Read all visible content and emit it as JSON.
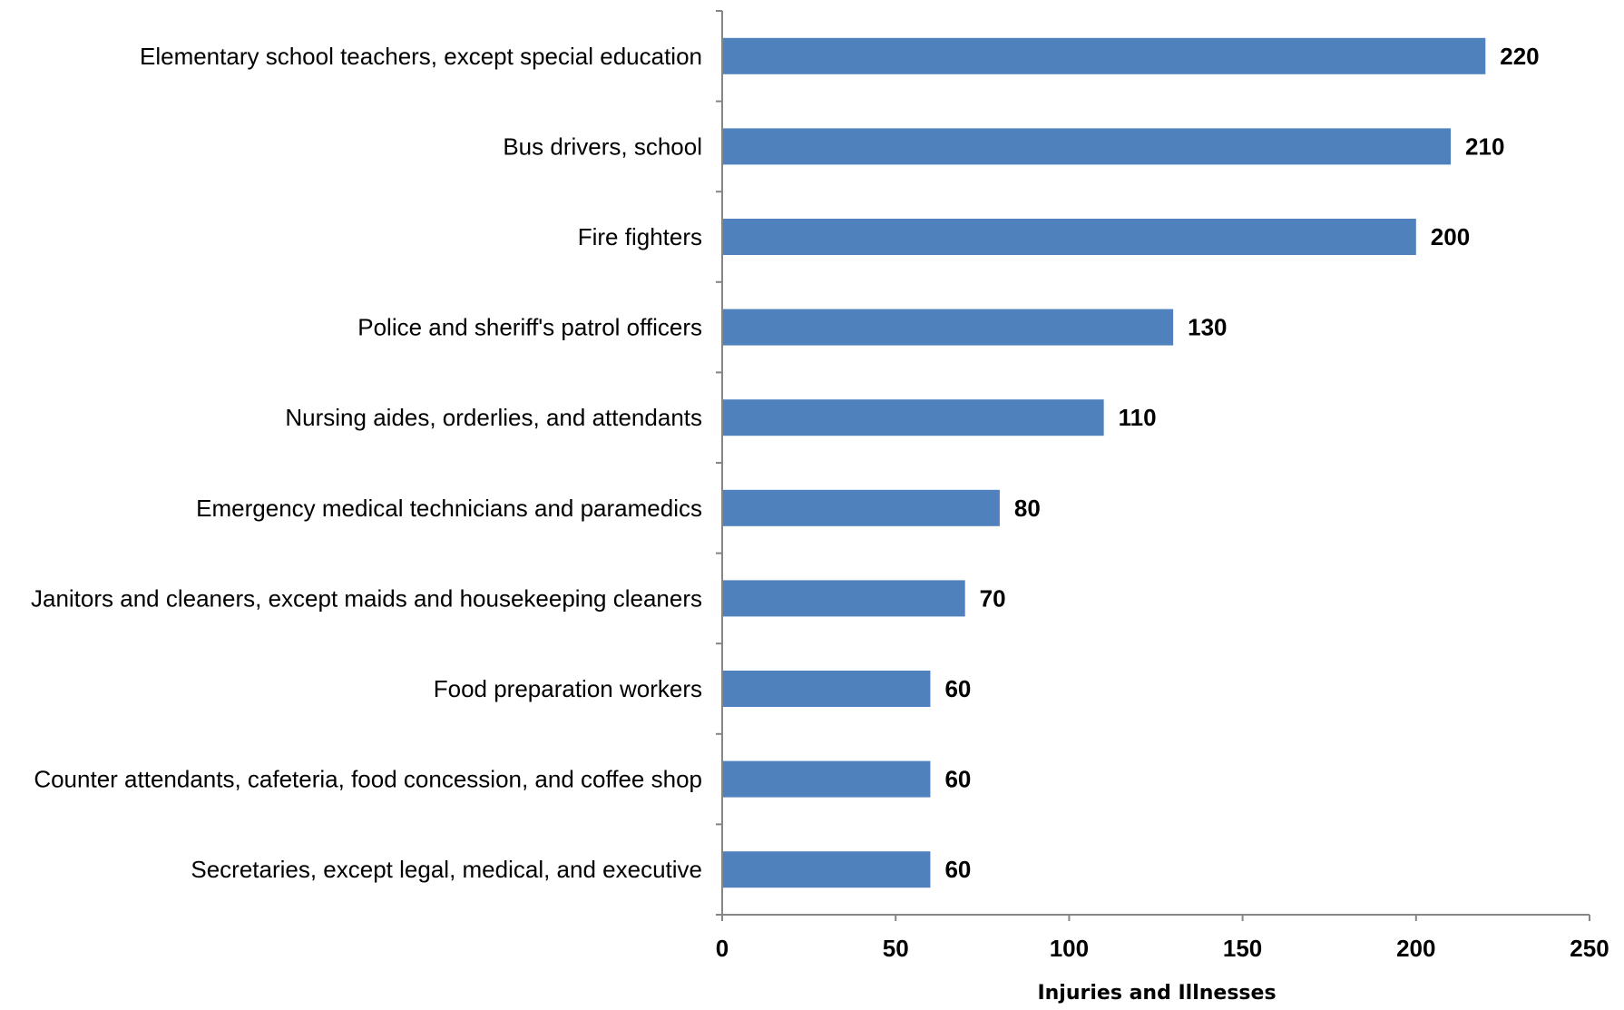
{
  "chart_data": {
    "type": "bar",
    "orientation": "horizontal",
    "categories": [
      "Elementary school teachers, except special education",
      "Bus drivers, school",
      "Fire fighters",
      "Police and sheriff's patrol officers",
      "Nursing aides, orderlies, and attendants",
      "Emergency medical technicians and paramedics",
      "Janitors and cleaners, except maids and housekeeping cleaners",
      "Food preparation workers",
      "Counter attendants, cafeteria, food concession, and coffee shop",
      "Secretaries, except legal, medical, and executive"
    ],
    "values": [
      220,
      210,
      200,
      130,
      110,
      80,
      70,
      60,
      60,
      60
    ],
    "data_labels": [
      "220",
      "210",
      "200",
      "130",
      "110",
      "80",
      "70",
      "60",
      "60",
      "60"
    ],
    "xlabel": "Injuries and Illnesses",
    "ylabel": "",
    "xlim": [
      0,
      250
    ],
    "x_ticks": [
      0,
      50,
      100,
      150,
      200,
      250
    ],
    "x_tick_labels": [
      "0",
      "50",
      "100",
      "150",
      "200",
      "250"
    ],
    "grid": false,
    "legend": "none",
    "bar_color": "#4F81BD",
    "axis_color": "#868686"
  }
}
